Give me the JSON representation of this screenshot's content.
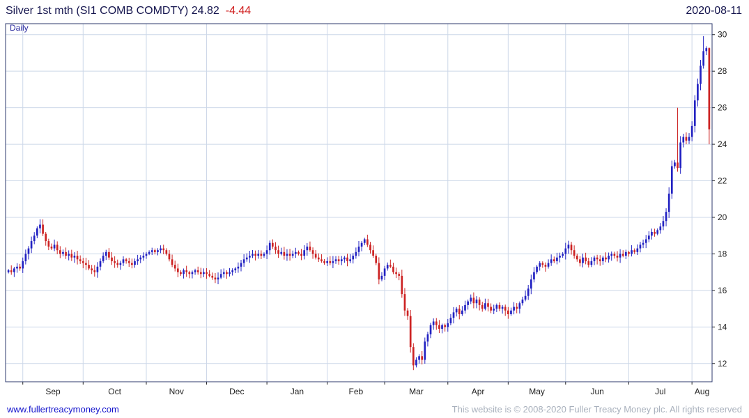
{
  "header": {
    "title": "Silver 1st mth (SI1 COMB COMDTY) 24.82",
    "change": "-4.44",
    "date": "2020-08-11"
  },
  "chart": {
    "frequency_label": "Daily"
  },
  "footer": {
    "link": "www.fullertreacymoney.com",
    "copyright": "This website is © 2008-2020 Fuller Treacy Money plc. All rights reserved"
  },
  "chart_data": {
    "type": "candlestick",
    "title": "Silver 1st mth (SI1 COMB COMDTY)",
    "frequency": "Daily",
    "last_price": 24.82,
    "change": -4.44,
    "date": "2020-08-11",
    "y_axis_side": "right",
    "ylim": [
      11.0,
      30.6
    ],
    "y_ticks": [
      12,
      14,
      16,
      18,
      20,
      22,
      24,
      26,
      28,
      30
    ],
    "x_labels": [
      "Sep",
      "Oct",
      "Nov",
      "Dec",
      "Jan",
      "Feb",
      "Mar",
      "Apr",
      "May",
      "Jun",
      "Jul",
      "Aug"
    ],
    "month_start_indices": [
      5,
      26,
      48,
      69,
      90,
      111,
      131,
      153,
      174,
      194,
      216,
      238
    ],
    "up_color": "#2222c2",
    "down_color": "#cc2222",
    "grid_color": "#ccd7e8",
    "border_color": "#2c3a6e",
    "axis_text_color": "#222222",
    "first_open": 17.0,
    "closes": [
      17.1,
      17.0,
      17.2,
      17.3,
      17.2,
      17.6,
      18.0,
      18.3,
      18.7,
      19.0,
      19.4,
      19.6,
      19.1,
      18.7,
      18.4,
      18.3,
      18.5,
      18.2,
      18.0,
      18.1,
      17.9,
      18.0,
      17.8,
      17.9,
      17.7,
      17.6,
      17.5,
      17.4,
      17.2,
      17.1,
      17.0,
      17.3,
      17.6,
      17.9,
      18.1,
      17.8,
      17.6,
      17.5,
      17.4,
      17.5,
      17.7,
      17.6,
      17.5,
      17.4,
      17.6,
      17.7,
      17.8,
      17.9,
      18.0,
      18.1,
      18.2,
      18.1,
      18.2,
      18.3,
      18.2,
      18.0,
      17.7,
      17.4,
      17.2,
      17.0,
      16.9,
      17.1,
      17.0,
      16.9,
      17.0,
      17.1,
      17.0,
      16.9,
      17.0,
      16.9,
      16.8,
      16.7,
      16.6,
      16.7,
      16.9,
      17.0,
      16.9,
      17.0,
      17.1,
      17.2,
      17.3,
      17.5,
      17.7,
      17.8,
      17.9,
      18.0,
      17.9,
      18.0,
      17.9,
      18.0,
      18.2,
      18.6,
      18.4,
      18.2,
      18.0,
      18.1,
      17.9,
      18.0,
      17.9,
      18.0,
      18.1,
      18.0,
      17.9,
      18.2,
      18.4,
      18.2,
      18.0,
      17.8,
      17.7,
      17.6,
      17.5,
      17.6,
      17.5,
      17.6,
      17.7,
      17.6,
      17.7,
      17.8,
      17.6,
      17.7,
      17.9,
      18.1,
      18.4,
      18.6,
      18.8,
      18.5,
      18.2,
      17.9,
      17.5,
      16.6,
      16.8,
      17.2,
      17.4,
      17.3,
      17.0,
      16.9,
      16.8,
      15.8,
      14.9,
      14.6,
      12.9,
      11.9,
      12.2,
      12.4,
      12.2,
      13.2,
      13.6,
      14.1,
      14.3,
      14.1,
      13.9,
      14.1,
      14.0,
      14.2,
      14.5,
      14.8,
      15.0,
      14.7,
      14.9,
      15.2,
      15.4,
      15.6,
      15.3,
      15.5,
      15.2,
      15.0,
      15.3,
      15.1,
      14.9,
      15.0,
      15.2,
      15.0,
      15.1,
      14.9,
      14.7,
      14.9,
      15.1,
      15.0,
      15.3,
      15.5,
      15.7,
      16.1,
      16.6,
      17.0,
      17.3,
      17.5,
      17.4,
      17.3,
      17.5,
      17.7,
      17.6,
      17.8,
      17.9,
      18.0,
      18.3,
      18.5,
      18.2,
      17.9,
      17.7,
      17.5,
      17.8,
      17.6,
      17.4,
      17.6,
      17.8,
      17.7,
      17.6,
      17.8,
      17.7,
      17.9,
      18.0,
      17.9,
      17.8,
      18.0,
      17.9,
      18.1,
      18.0,
      18.2,
      18.1,
      18.3,
      18.5,
      18.6,
      18.8,
      19.0,
      19.2,
      19.1,
      19.3,
      19.5,
      19.8,
      20.3,
      21.3,
      22.8,
      23.0,
      22.7,
      24.1,
      24.4,
      24.2,
      24.4,
      25.0,
      26.4,
      27.3,
      28.3,
      29.1,
      29.26,
      24.82
    ],
    "wick_overrides": [
      {
        "index": 11,
        "high": 19.9
      },
      {
        "index": 141,
        "low": 11.64
      },
      {
        "index": 233,
        "high": 26.0
      },
      {
        "index": 242,
        "high": 29.92
      },
      {
        "index": 244,
        "high": 29.3,
        "low": 24.0
      }
    ]
  }
}
